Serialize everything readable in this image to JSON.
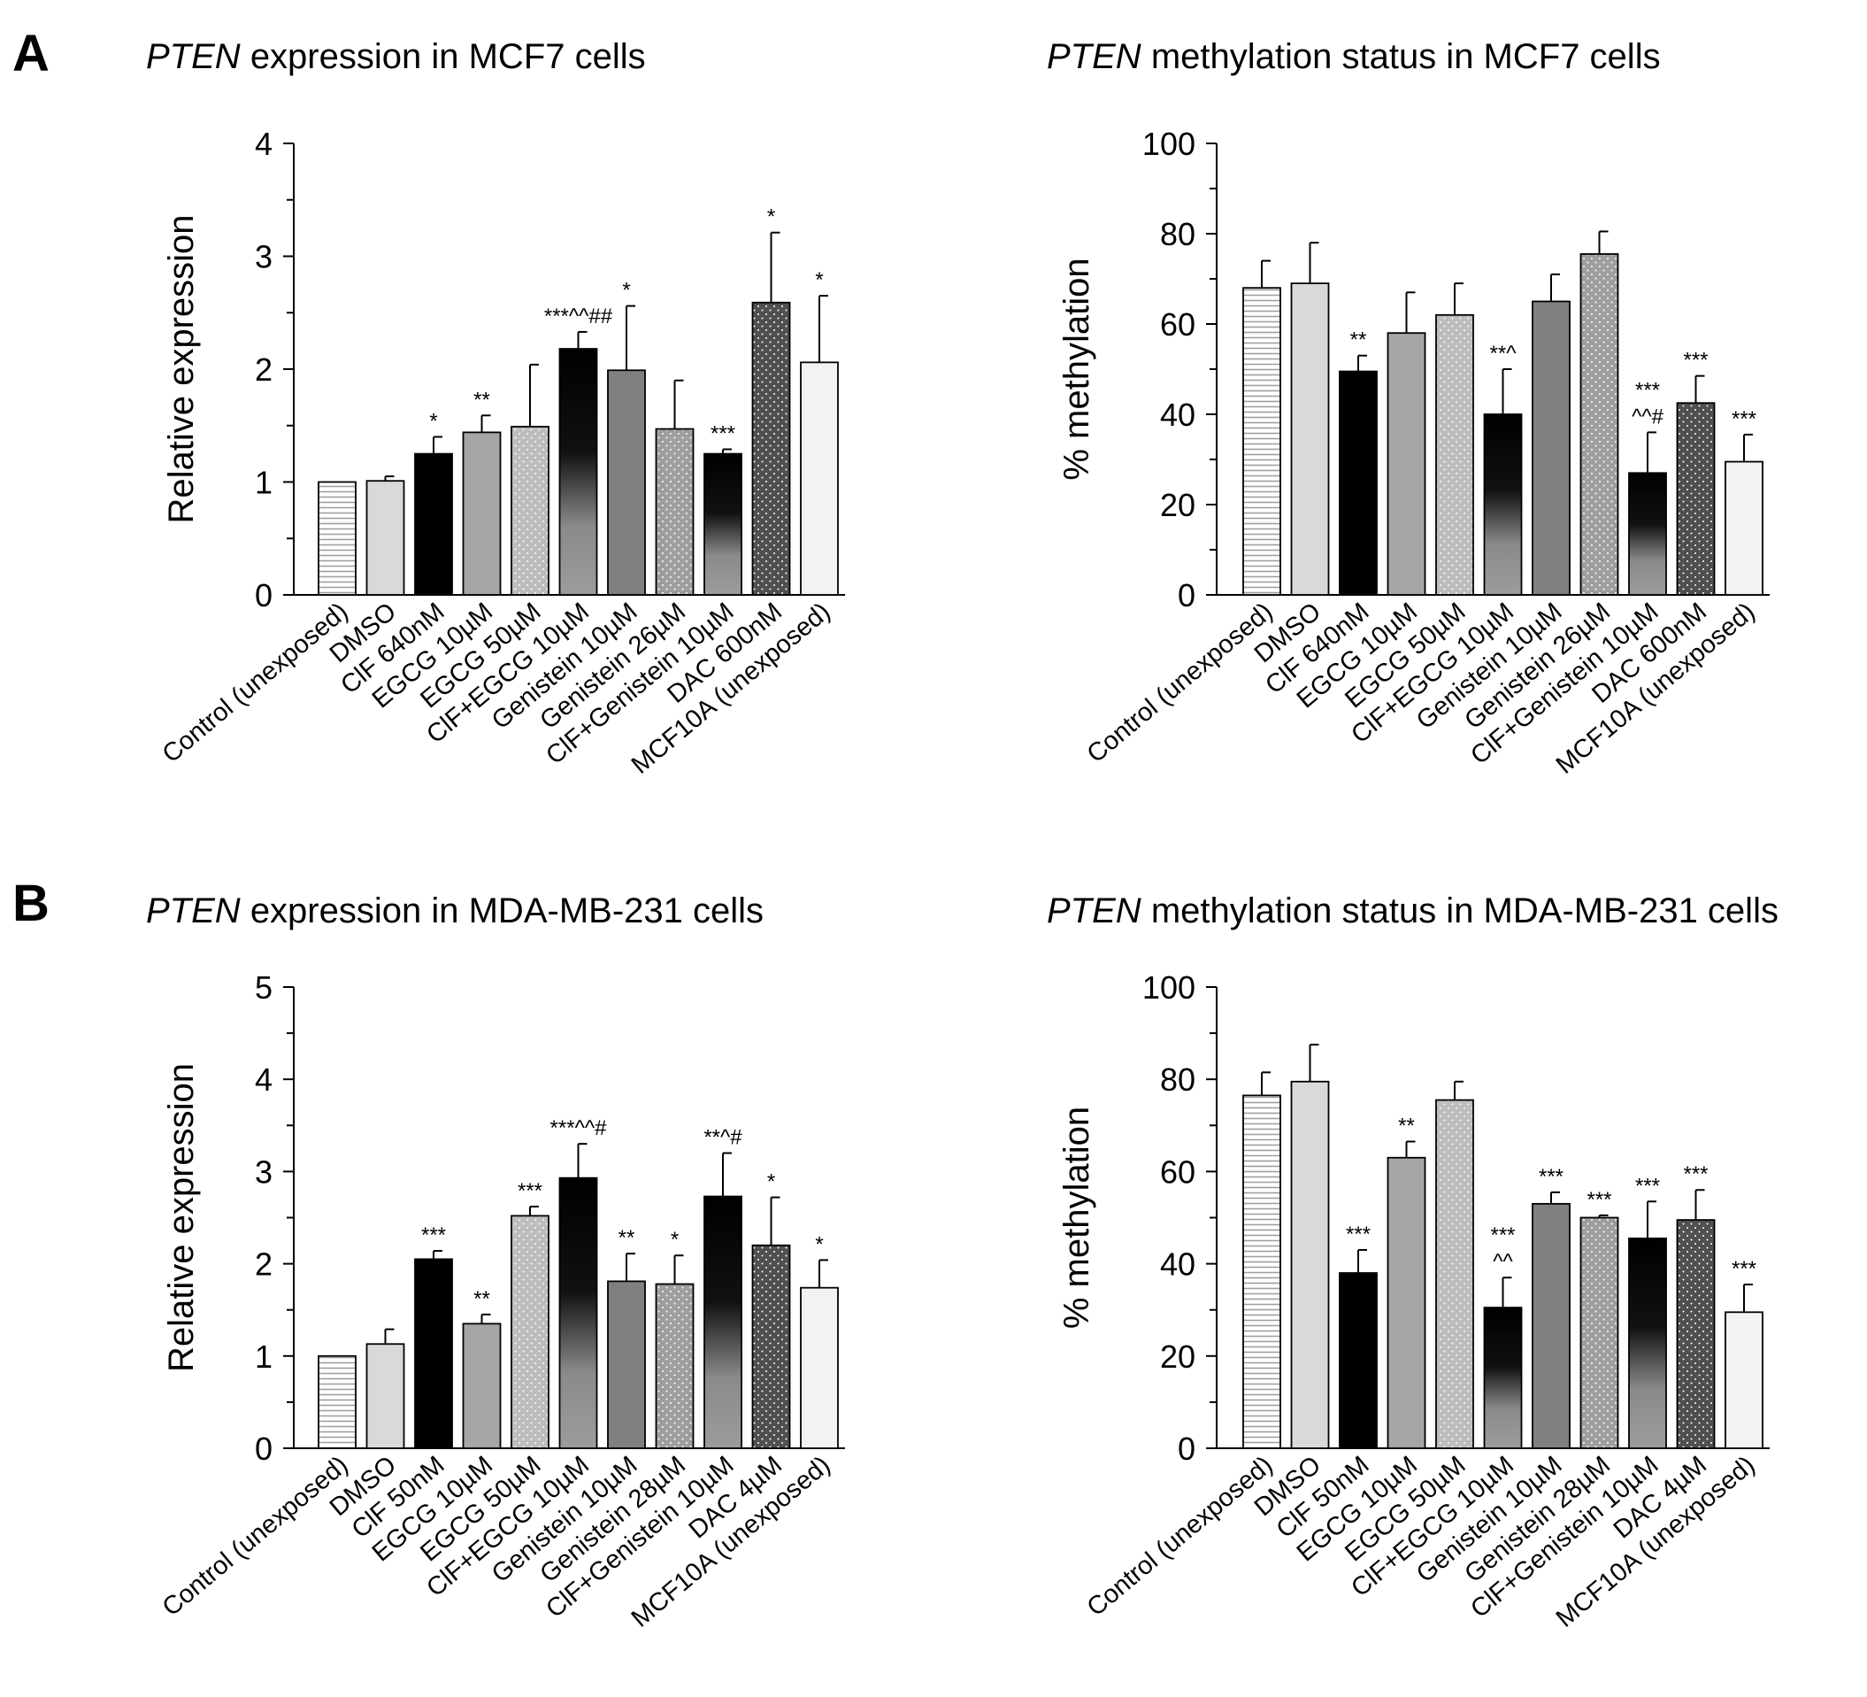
{
  "panels": [
    {
      "letter": "A"
    },
    {
      "letter": "B"
    }
  ],
  "chart_data": [
    {
      "type": "bar",
      "title_italic": "PTEN",
      "title_rest": "expression in MCF7 cells",
      "ylabel": "Relative expression",
      "ylim": [
        0,
        4
      ],
      "yticks": [
        0,
        1,
        2,
        3,
        4
      ],
      "categories": [
        "Control (unexposed)",
        "DMSO",
        "ClF 640nM",
        "EGCG 10µM",
        "EGCG 50µM",
        "ClF+EGCG 10µM",
        "Genistein 10µM",
        "Genistein 26µM",
        "ClF+Genistein 10µM",
        "DAC 600nM",
        "MCF10A (unexposed)"
      ],
      "values": [
        1.0,
        1.01,
        1.25,
        1.44,
        1.49,
        2.18,
        1.99,
        1.47,
        1.25,
        2.59,
        2.06
      ],
      "errors": [
        0,
        0.04,
        0.15,
        0.15,
        0.55,
        0.15,
        0.57,
        0.43,
        0.04,
        0.62,
        0.59
      ],
      "annotations": [
        "",
        "",
        "*",
        "**",
        "",
        "***^^##",
        "*",
        "",
        "***",
        "*",
        "*"
      ],
      "fills": [
        "hstripe",
        "#d9d9d9",
        "#000000",
        "#a6a6a6",
        "dots-light",
        "grad",
        "#808080",
        "dots-mid",
        "grad",
        "dots-dark",
        "#f2f2f2"
      ]
    },
    {
      "type": "bar",
      "title_italic": "PTEN",
      "title_rest": "methylation status in MCF7 cells",
      "ylabel": "% methylation",
      "ylim": [
        0,
        100
      ],
      "yticks": [
        0,
        20,
        40,
        60,
        80,
        100
      ],
      "categories": [
        "Control (unexposed)",
        "DMSO",
        "ClF 640nM",
        "EGCG 10µM",
        "EGCG 50µM",
        "ClF+EGCG 10µM",
        "Genistein 10µM",
        "Genistein 26µM",
        "ClF+Genistein 10µM",
        "DAC 600nM",
        "MCF10A (unexposed)"
      ],
      "values": [
        68,
        69,
        49.5,
        58,
        62,
        40,
        65,
        75.5,
        27,
        42.5,
        29.5
      ],
      "errors": [
        6,
        9,
        3.5,
        9,
        7,
        10,
        6,
        5,
        9,
        6,
        6
      ],
      "annotations": [
        "",
        "",
        "**",
        "",
        "",
        "**^",
        "",
        "",
        "***|^^#",
        "***",
        "***"
      ],
      "fills": [
        "hstripe",
        "#d9d9d9",
        "#000000",
        "#a6a6a6",
        "dots-light",
        "grad",
        "#808080",
        "dots-mid",
        "grad",
        "dots-dark",
        "#f2f2f2"
      ]
    },
    {
      "type": "bar",
      "title_italic": "PTEN",
      "title_rest": "expression in MDA-MB-231 cells",
      "ylabel": "Relative expression",
      "ylim": [
        0,
        5
      ],
      "yticks": [
        0,
        1,
        2,
        3,
        4,
        5
      ],
      "categories": [
        "Control (unexposed)",
        "DMSO",
        "ClF 50nM",
        "EGCG 10µM",
        "EGCG 50µM",
        "ClF+EGCG 10µM",
        "Genistein 10µM",
        "Genistein 28µM",
        "ClF+Genistein 10µM",
        "DAC 4µM",
        "MCF10A (unexposed)"
      ],
      "values": [
        1.0,
        1.13,
        2.05,
        1.35,
        2.52,
        2.93,
        1.81,
        1.78,
        2.73,
        2.2,
        1.74
      ],
      "errors": [
        0,
        0.16,
        0.09,
        0.1,
        0.1,
        0.37,
        0.3,
        0.31,
        0.47,
        0.52,
        0.3
      ],
      "annotations": [
        "",
        "",
        "***",
        "**",
        "***",
        "***^^#",
        "**",
        "*",
        "**^#",
        "*",
        "*"
      ],
      "fills": [
        "hstripe",
        "#d9d9d9",
        "#000000",
        "#a6a6a6",
        "dots-light",
        "grad",
        "#808080",
        "dots-mid",
        "grad",
        "dots-dark",
        "#f2f2f2"
      ]
    },
    {
      "type": "bar",
      "title_italic": "PTEN",
      "title_rest": "methylation status in MDA-MB-231 cells",
      "ylabel": "% methylation",
      "ylim": [
        0,
        100
      ],
      "yticks": [
        0,
        20,
        40,
        60,
        80,
        100
      ],
      "categories": [
        "Control (unexposed)",
        "DMSO",
        "ClF 50nM",
        "EGCG 10µM",
        "EGCG 50µM",
        "ClF+EGCG 10µM",
        "Genistein 10µM",
        "Genistein 28µM",
        "ClF+Genistein 10µM",
        "DAC 4µM",
        "MCF10A (unexposed)"
      ],
      "values": [
        76.5,
        79.5,
        38,
        63,
        75.5,
        30.5,
        53,
        50,
        45.5,
        49.5,
        29.5
      ],
      "errors": [
        5,
        8,
        5,
        3.5,
        4,
        6.5,
        2.5,
        0.5,
        8,
        6.5,
        6
      ],
      "annotations": [
        "",
        "",
        "***",
        "**",
        "",
        "***|^^",
        "***",
        "***",
        "***",
        "***",
        "***"
      ],
      "fills": [
        "hstripe",
        "#d9d9d9",
        "#000000",
        "#a6a6a6",
        "dots-light",
        "grad",
        "#808080",
        "dots-mid",
        "grad",
        "dots-dark",
        "#f2f2f2"
      ]
    }
  ]
}
